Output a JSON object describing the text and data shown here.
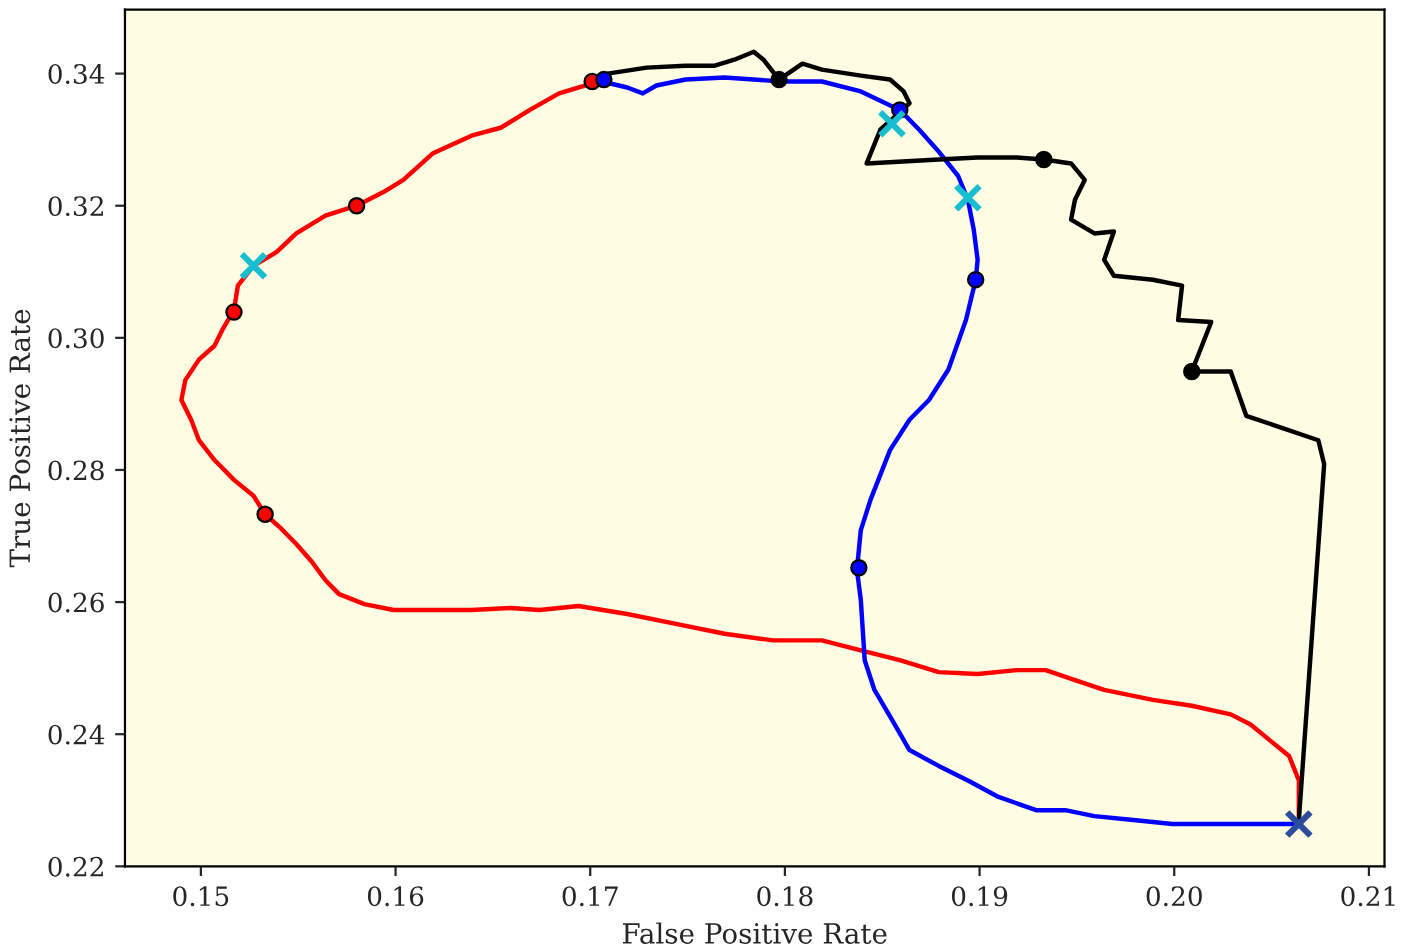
{
  "chart_data": {
    "type": "line",
    "xlabel": "False Positive Rate",
    "ylabel": "True Positive Rate",
    "xlim": [
      0.1461,
      0.2108
    ],
    "ylim": [
      0.22,
      0.3497
    ],
    "xticks": [
      0.15,
      0.16,
      0.17,
      0.18,
      0.19,
      {
        "value": 0.2,
        "label": "0.20"
      },
      0.21
    ],
    "yticks": [
      0.22,
      0.24,
      0.26,
      0.28,
      {
        "value": 0.3,
        "label": "0.30"
      },
      0.32,
      0.34
    ],
    "grid": false,
    "legend": false,
    "series": [
      {
        "marker": "none",
        "color": "#ff0000",
        "x": [
          0.1704,
          0.1684,
          0.1669,
          0.1654,
          0.1639,
          0.1619,
          0.1604,
          0.1594,
          0.158,
          0.1564,
          0.1549,
          0.1539,
          0.1527,
          0.1519,
          0.1517,
          0.1511,
          0.1507,
          0.1499,
          0.1492,
          0.149,
          0.1495,
          0.1499,
          0.1507,
          0.1517,
          0.1527,
          0.1533,
          0.1541,
          0.1549,
          0.1557,
          0.1564,
          0.1571,
          0.1584,
          0.1599,
          0.1614,
          0.1639,
          0.1659,
          0.1674,
          0.1694,
          0.1719,
          0.1744,
          0.1769,
          0.1794,
          0.1819,
          0.1839,
          0.1859,
          0.1879,
          0.1899,
          0.1919,
          0.1934,
          0.1949,
          0.1964,
          0.1989,
          0.2009,
          0.2029,
          0.2039,
          0.2049,
          0.2059,
          0.2064,
          0.2064
        ],
        "values": [
          0.3388,
          0.337,
          0.3345,
          0.3318,
          0.3306,
          0.3279,
          0.3239,
          0.3221,
          0.32,
          0.3185,
          0.3158,
          0.313,
          0.3109,
          0.3079,
          0.3042,
          0.3012,
          0.2988,
          0.2967,
          0.2936,
          0.2906,
          0.2876,
          0.2845,
          0.2815,
          0.2785,
          0.2761,
          0.2733,
          0.2712,
          0.2688,
          0.2661,
          0.2633,
          0.2612,
          0.2597,
          0.2588,
          0.2588,
          0.2588,
          0.2591,
          0.2588,
          0.2594,
          0.2582,
          0.2567,
          0.2552,
          0.2542,
          0.2542,
          0.2527,
          0.2512,
          0.2494,
          0.2491,
          0.2497,
          0.2497,
          0.2482,
          0.2467,
          0.2452,
          0.2443,
          0.243,
          0.2415,
          0.2391,
          0.2367,
          0.233,
          0.2276
        ]
      },
      {
        "marker": "none",
        "color": "#0000ff",
        "x": [
          0.1706,
          0.1719,
          0.1727,
          0.1734,
          0.1749,
          0.1769,
          0.1784,
          0.1799,
          0.1819,
          0.1839,
          0.1859,
          0.1869,
          0.1879,
          0.1889,
          0.1894,
          0.1897,
          0.1899,
          0.1898,
          0.1893,
          0.1884,
          0.1874,
          0.1864,
          0.1854,
          0.1844,
          0.1839,
          0.1837,
          0.1839,
          0.1841,
          0.1846,
          0.1854,
          0.1864,
          0.1879,
          0.1894,
          0.1909,
          0.1929,
          0.1944,
          0.1959,
          0.1979,
          0.1999,
          0.2019,
          0.2039,
          0.2064
        ],
        "values": [
          0.3388,
          0.3379,
          0.337,
          0.3382,
          0.3391,
          0.3394,
          0.3391,
          0.3388,
          0.3388,
          0.3373,
          0.3345,
          0.3315,
          0.3282,
          0.3245,
          0.3209,
          0.3164,
          0.3118,
          0.3088,
          0.3027,
          0.2952,
          0.2906,
          0.2876,
          0.283,
          0.2755,
          0.2709,
          0.2649,
          0.2603,
          0.2512,
          0.2467,
          0.2427,
          0.2376,
          0.2352,
          0.233,
          0.2306,
          0.2285,
          0.2285,
          0.2276,
          0.227,
          0.2264,
          0.2264,
          0.2264,
          0.2264
        ]
      },
      {
        "marker": "none",
        "color": "#000000",
        "x": [
          0.1704,
          0.1709,
          0.1729,
          0.1749,
          0.1764,
          0.1774,
          0.1784,
          0.1789,
          0.1797,
          0.1809,
          0.1819,
          0.1839,
          0.1854,
          0.1861,
          0.1864,
          0.1849,
          0.1842,
          0.1879,
          0.1899,
          0.1919,
          0.1933,
          0.1947,
          0.1954,
          0.1949,
          0.1947,
          0.1959,
          0.1969,
          0.1964,
          0.1969,
          0.1989,
          0.2004,
          0.2002,
          0.2019,
          0.2009,
          0.2029,
          0.2037,
          0.2074,
          0.2077,
          0.2064
        ],
        "values": [
          0.3391,
          0.34,
          0.3409,
          0.3412,
          0.3412,
          0.3421,
          0.3433,
          0.3421,
          0.3391,
          0.3415,
          0.3406,
          0.3397,
          0.3391,
          0.3373,
          0.3355,
          0.3315,
          0.3264,
          0.327,
          0.3273,
          0.3273,
          0.327,
          0.3264,
          0.3239,
          0.3209,
          0.3179,
          0.3158,
          0.3161,
          0.3118,
          0.3094,
          0.3088,
          0.3079,
          0.3027,
          0.3024,
          0.2949,
          0.2949,
          0.2882,
          0.2845,
          0.2809,
          0.227
        ]
      },
      {
        "type": "scatter",
        "marker": "circle",
        "color": "#ff0000",
        "x": [
          0.1701,
          0.158,
          0.1517,
          0.1533
        ],
        "values": [
          0.3388,
          0.32,
          0.3039,
          0.2733
        ]
      },
      {
        "type": "scatter",
        "marker": "circle",
        "color": "#0000ff",
        "x": [
          0.1707,
          0.1859,
          0.1898,
          0.1838
        ],
        "values": [
          0.3391,
          0.3345,
          0.3088,
          0.2652
        ]
      },
      {
        "type": "scatter",
        "marker": "circle",
        "color": "#000000",
        "x": [
          0.1797,
          0.1933,
          0.2009
        ],
        "values": [
          0.3391,
          0.327,
          0.2949
        ]
      },
      {
        "type": "scatter",
        "marker": "cross",
        "color": "#17becf",
        "x": [
          0.1527,
          0.1855,
          0.1894
        ],
        "values": [
          0.3109,
          0.3324,
          0.3212
        ]
      },
      {
        "type": "scatter",
        "marker": "cross",
        "color": "#2b4c9b",
        "x": [
          0.2064
        ],
        "values": [
          0.2264
        ]
      }
    ]
  }
}
